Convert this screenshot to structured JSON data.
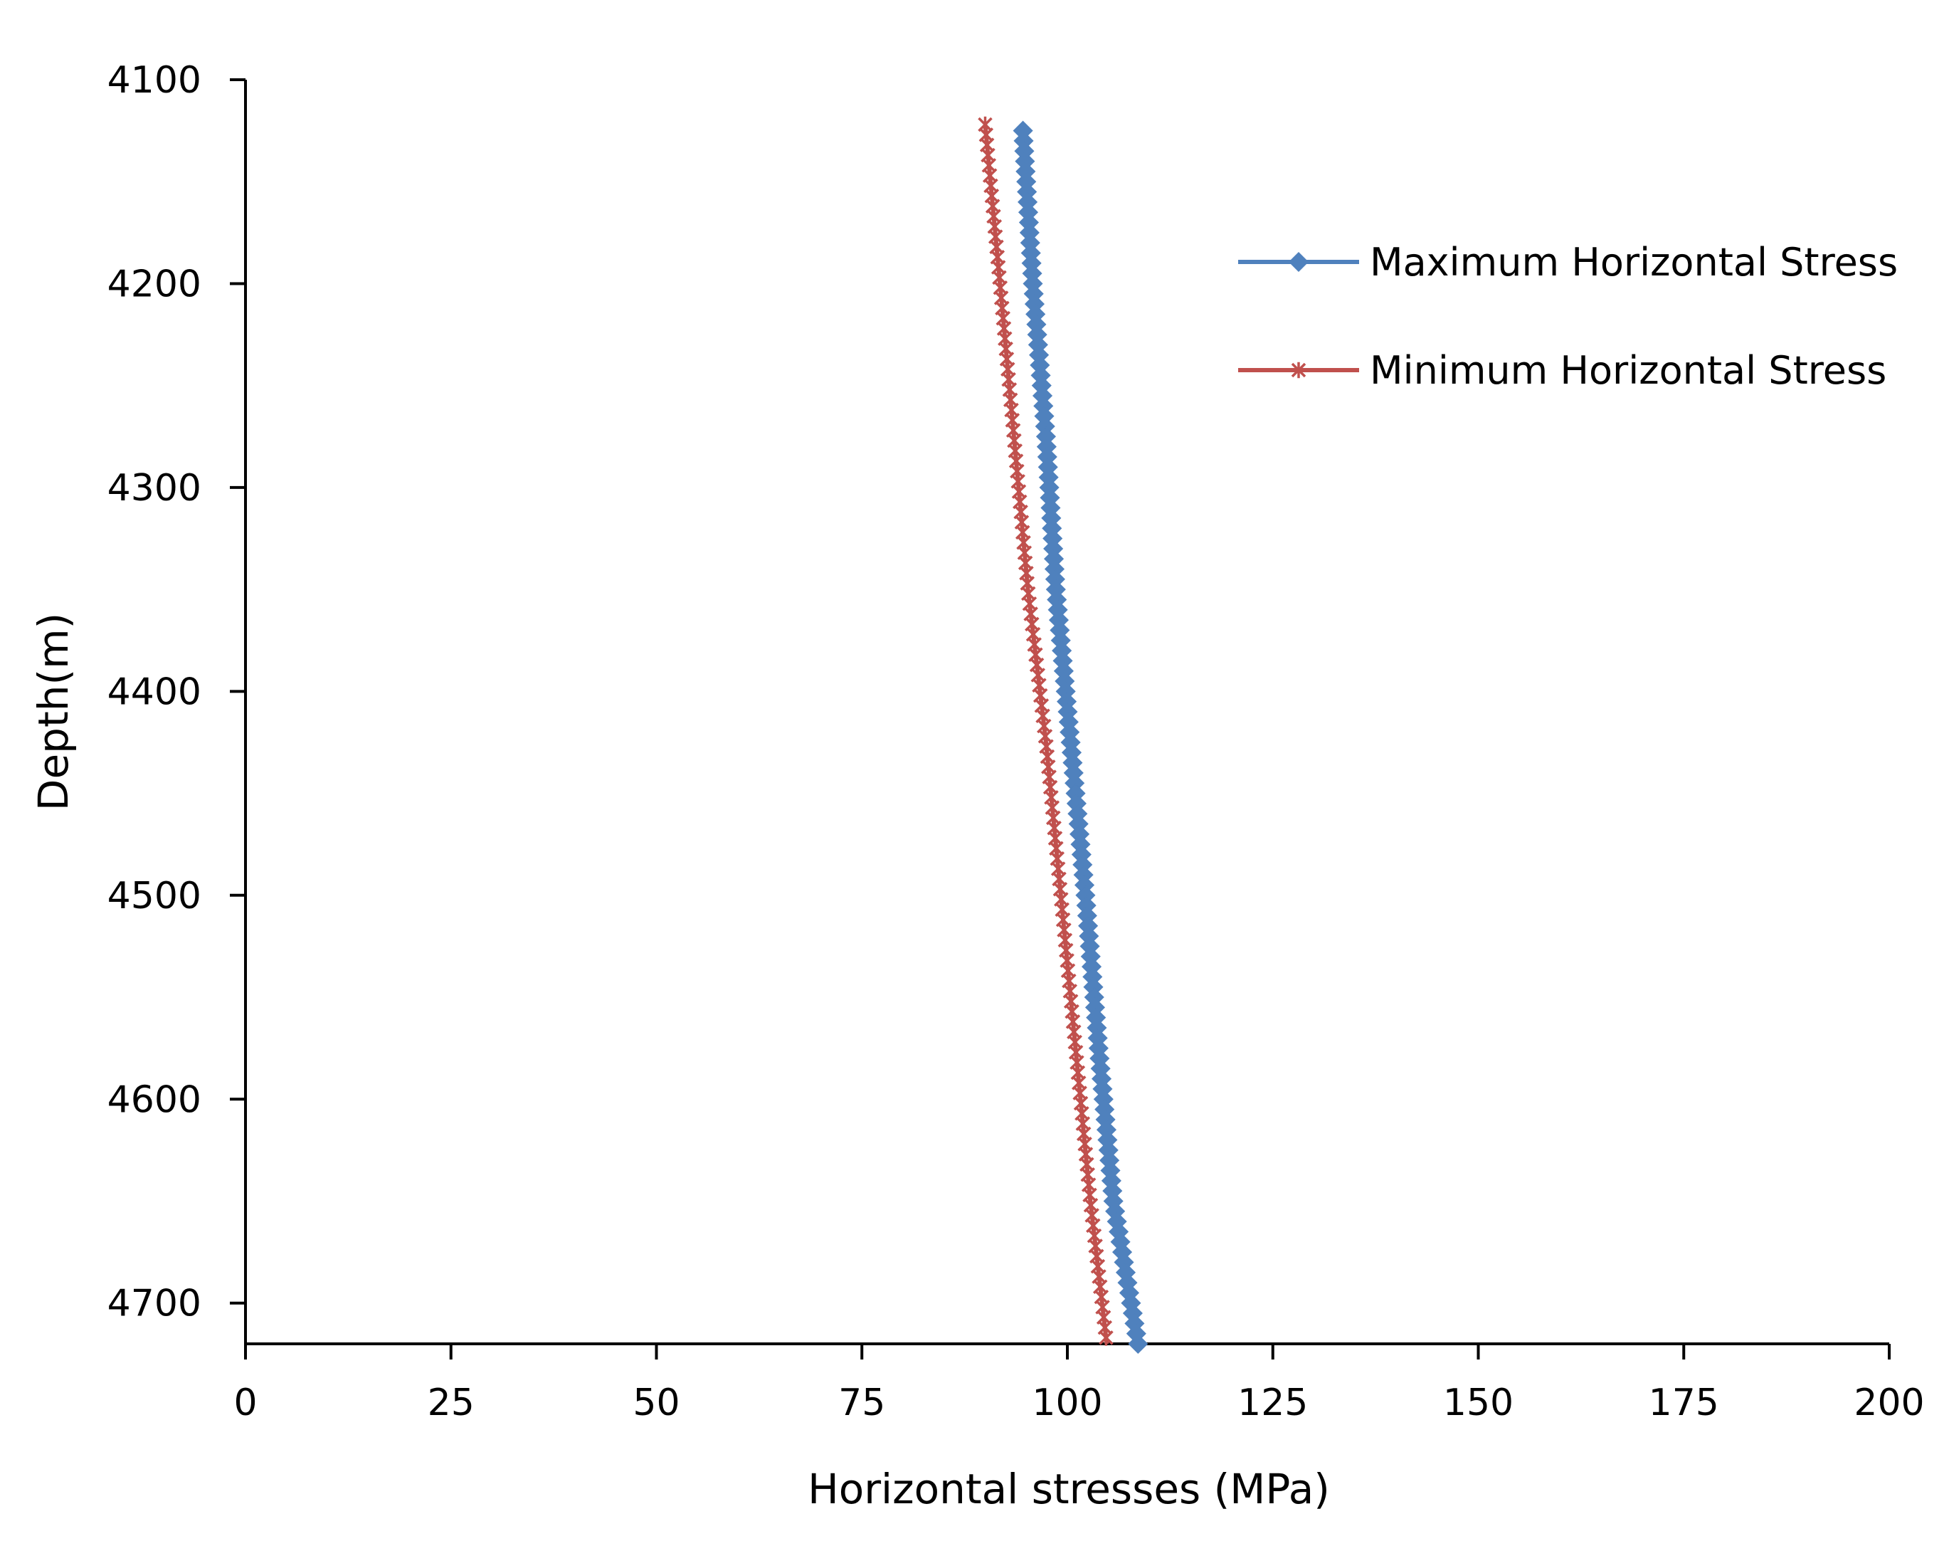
{
  "chart_data": {
    "type": "line",
    "title": "",
    "xlabel": "Horizontal stresses (MPa)",
    "ylabel": "Depth(m)",
    "xlim": [
      0,
      200
    ],
    "ylim": [
      4100,
      4720
    ],
    "y_inverted": true,
    "x_axis_position": "bottom",
    "grid": false,
    "legend_position": "top-right",
    "x_ticks": [
      0,
      25,
      50,
      75,
      100,
      125,
      150,
      175,
      200
    ],
    "x_tick_labels": [
      "0",
      "25",
      "50",
      "75",
      "100",
      "125",
      "150",
      "175",
      "200"
    ],
    "y_ticks": [
      4100,
      4200,
      4300,
      4400,
      4500,
      4600,
      4700
    ],
    "y_tick_labels": [
      "4100",
      "4200",
      "4300",
      "4400",
      "4500",
      "4600",
      "4700"
    ],
    "series": [
      {
        "name": "Maximum Horizontal Stress",
        "color": "#4F81BD",
        "marker": "diamond",
        "points": [
          {
            "x": 94.6,
            "y": 4125
          },
          {
            "x": 95.8,
            "y": 4200
          },
          {
            "x": 97.4,
            "y": 4275
          },
          {
            "x": 98.6,
            "y": 4350
          },
          {
            "x": 100.4,
            "y": 4425
          },
          {
            "x": 102.2,
            "y": 4500
          },
          {
            "x": 103.8,
            "y": 4575
          },
          {
            "x": 105.6,
            "y": 4650
          },
          {
            "x": 108.6,
            "y": 4720
          }
        ]
      },
      {
        "name": "Minimum Horizontal Stress",
        "color": "#C0504D",
        "marker": "star",
        "points": [
          {
            "x": 90.0,
            "y": 4122
          },
          {
            "x": 91.8,
            "y": 4200
          },
          {
            "x": 93.5,
            "y": 4275
          },
          {
            "x": 95.2,
            "y": 4350
          },
          {
            "x": 97.4,
            "y": 4425
          },
          {
            "x": 99.2,
            "y": 4500
          },
          {
            "x": 101.0,
            "y": 4575
          },
          {
            "x": 102.8,
            "y": 4650
          },
          {
            "x": 104.8,
            "y": 4720
          }
        ]
      }
    ]
  }
}
